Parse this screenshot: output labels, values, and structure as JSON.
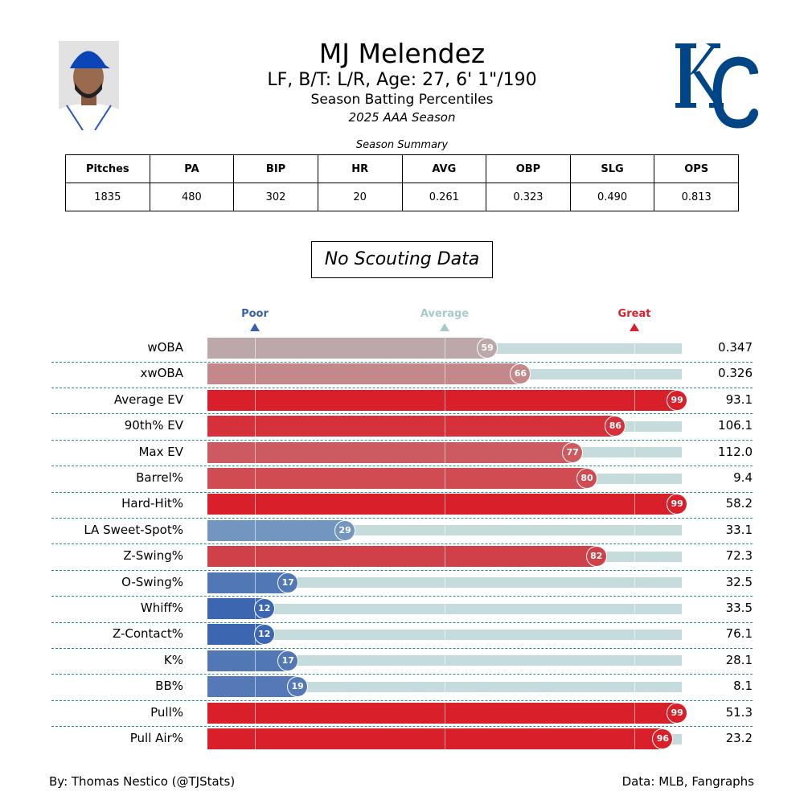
{
  "header": {
    "name": "MJ Melendez",
    "info": "LF, B/T: L/R, Age: 27, 6' 1\"/190",
    "subtitle": "Season Batting Percentiles",
    "season": "2025 AAA Season",
    "logo_text": "KC",
    "logo_color": "#004687"
  },
  "summary": {
    "title": "Season Summary",
    "headers": [
      "Pitches",
      "PA",
      "BIP",
      "HR",
      "AVG",
      "OBP",
      "SLG",
      "OPS"
    ],
    "values": [
      "1835",
      "480",
      "302",
      "20",
      "0.261",
      "0.323",
      "0.490",
      "0.813"
    ]
  },
  "scouting": "No Scouting Data",
  "chart_data": {
    "type": "bar",
    "orientation": "horizontal",
    "xlim": [
      0,
      100
    ],
    "scale_labels": [
      {
        "label": "Poor",
        "at": 10,
        "color": "#3560b0"
      },
      {
        "label": "Average",
        "at": 50,
        "color": "#a9c8cc"
      },
      {
        "label": "Great",
        "at": 90,
        "color": "#d9202a"
      }
    ],
    "background_color": "#c6dcdc",
    "rows": [
      {
        "stat": "wOBA",
        "percentile": 59,
        "value": "0.347",
        "color": "#bda8a9"
      },
      {
        "stat": "xwOBA",
        "percentile": 66,
        "value": "0.326",
        "color": "#c4888b"
      },
      {
        "stat": "Average EV",
        "percentile": 99,
        "value": "93.1",
        "color": "#d9202a"
      },
      {
        "stat": "90th% EV",
        "percentile": 86,
        "value": "106.1",
        "color": "#d6303a"
      },
      {
        "stat": "Max EV",
        "percentile": 77,
        "value": "112.0",
        "color": "#cd5a60"
      },
      {
        "stat": "Barrel%",
        "percentile": 80,
        "value": "9.4",
        "color": "#d04c52"
      },
      {
        "stat": "Hard-Hit%",
        "percentile": 99,
        "value": "58.2",
        "color": "#d9202a"
      },
      {
        "stat": "LA Sweet-Spot%",
        "percentile": 29,
        "value": "33.1",
        "color": "#7396c0"
      },
      {
        "stat": "Z-Swing%",
        "percentile": 82,
        "value": "72.3",
        "color": "#d04048"
      },
      {
        "stat": "O-Swing%",
        "percentile": 17,
        "value": "32.5",
        "color": "#5277b5"
      },
      {
        "stat": "Whiff%",
        "percentile": 12,
        "value": "33.5",
        "color": "#3d66b1"
      },
      {
        "stat": "Z-Contact%",
        "percentile": 12,
        "value": "76.1",
        "color": "#3d66b1"
      },
      {
        "stat": "K%",
        "percentile": 17,
        "value": "28.1",
        "color": "#5277b5"
      },
      {
        "stat": "BB%",
        "percentile": 19,
        "value": "8.1",
        "color": "#5579b6"
      },
      {
        "stat": "Pull%",
        "percentile": 99,
        "value": "51.3",
        "color": "#d9202a"
      },
      {
        "stat": "Pull Air%",
        "percentile": 96,
        "value": "23.2",
        "color": "#d9202a"
      }
    ]
  },
  "footer": {
    "left": "By: Thomas Nestico (@TJStats)",
    "right": "Data: MLB, Fangraphs"
  }
}
